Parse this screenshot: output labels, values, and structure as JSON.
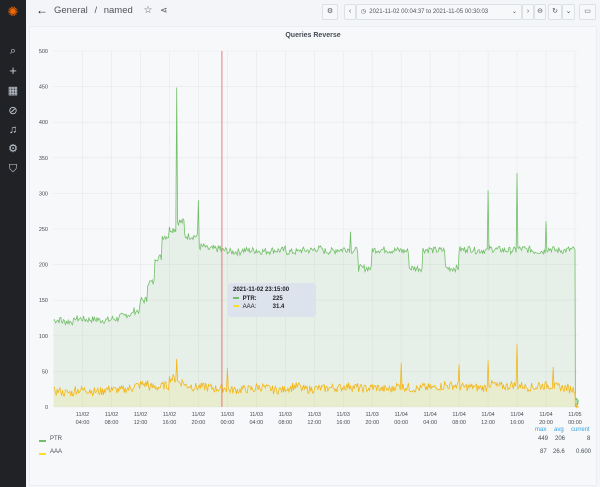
{
  "sidebar": {
    "items": [
      "grafana-logo",
      "search-icon",
      "plus-icon",
      "dashboards-icon",
      "explore-icon",
      "alerting-icon",
      "settings-icon",
      "shield-icon"
    ]
  },
  "header": {
    "breadcrumb_folder": "General",
    "breadcrumb_sep": "/",
    "dashboard": "named",
    "time_range": "2021-11-02 00:04:37 to 2021-11-05 00:30:03"
  },
  "panel": {
    "title": "Queries Reverse"
  },
  "tooltip": {
    "time": "2021-11-02 23:15:00",
    "rows": [
      {
        "name": "PTR:",
        "value": "225"
      },
      {
        "name": "AAA:",
        "value": "31.4"
      }
    ]
  },
  "legend": {
    "headers": [
      "max",
      "avg",
      "current"
    ],
    "rows": [
      {
        "name": "PTR",
        "max": "449",
        "avg": "206",
        "current": "8"
      },
      {
        "name": "AAA",
        "max": "87",
        "avg": "26.6",
        "current": "0.600"
      }
    ]
  },
  "chart_data": {
    "type": "line",
    "title": "Queries Reverse",
    "ylim": [
      0,
      500
    ],
    "yticks": [
      "0",
      "50",
      "100",
      "150",
      "200",
      "250",
      "300",
      "350",
      "400",
      "450",
      "500"
    ],
    "xticks": [
      [
        "11/02",
        "04:00"
      ],
      [
        "11/02",
        "08:00"
      ],
      [
        "11/02",
        "12:00"
      ],
      [
        "11/02",
        "16:00"
      ],
      [
        "11/02",
        "20:00"
      ],
      [
        "11/03",
        "00:00"
      ],
      [
        "11/03",
        "04:00"
      ],
      [
        "11/03",
        "08:00"
      ],
      [
        "11/03",
        "12:00"
      ],
      [
        "11/03",
        "16:00"
      ],
      [
        "11/03",
        "20:00"
      ],
      [
        "11/04",
        "00:00"
      ],
      [
        "11/04",
        "04:00"
      ],
      [
        "11/04",
        "08:00"
      ],
      [
        "11/04",
        "12:00"
      ],
      [
        "11/04",
        "16:00"
      ],
      [
        "11/04",
        "20:00"
      ],
      [
        "11/05",
        "00:00"
      ]
    ],
    "x_hours_from_2021-11-02_00:00": [
      0,
      1,
      2,
      3,
      4,
      5,
      6,
      7,
      8,
      9,
      10,
      11,
      12,
      13,
      14,
      15,
      16,
      17,
      18,
      19,
      20,
      21,
      22,
      23,
      24,
      25,
      26,
      27,
      28,
      29,
      30,
      31,
      32,
      33,
      34,
      35,
      36,
      37,
      38,
      39,
      40,
      41,
      42,
      43,
      44,
      45,
      46,
      47,
      48,
      49,
      50,
      51,
      52,
      53,
      54,
      55,
      56,
      57,
      58,
      59,
      60,
      61,
      62,
      63,
      64,
      65,
      66,
      67,
      68,
      69,
      70,
      71,
      72,
      72.5
    ],
    "series": [
      {
        "name": "PTR",
        "color": "#73bf69",
        "values": [
          122,
          125,
          120,
          126,
          124,
          123,
          125,
          122,
          124,
          127,
          130,
          135,
          150,
          175,
          210,
          240,
          250,
          449,
          260,
          240,
          290,
          225,
          222,
          225,
          220,
          218,
          222,
          220,
          221,
          219,
          222,
          220,
          223,
          218,
          221,
          220,
          222,
          224,
          219,
          221,
          222,
          245,
          220,
          195,
          222,
          221,
          223,
          220,
          222,
          219,
          195,
          221,
          223,
          220,
          222,
          195,
          221,
          224,
          222,
          220,
          300,
          222,
          221,
          220,
          330,
          222,
          221,
          219,
          265,
          222,
          220,
          221,
          222,
          8
        ]
      },
      {
        "name": "AAA",
        "color": "#fade2a",
        "values": [
          22,
          25,
          20,
          27,
          24,
          26,
          22,
          25,
          28,
          24,
          26,
          30,
          32,
          35,
          28,
          30,
          40,
          70,
          35,
          30,
          28,
          31,
          27,
          26,
          55,
          24,
          27,
          25,
          28,
          30,
          26,
          24,
          27,
          29,
          31,
          25,
          28,
          26,
          30,
          27,
          29,
          32,
          28,
          26,
          30,
          27,
          25,
          29,
          65,
          28,
          26,
          31,
          27,
          29,
          33,
          30,
          60,
          28,
          30,
          27,
          70,
          32,
          29,
          31,
          87,
          30,
          28,
          33,
          30,
          60,
          28,
          27,
          25,
          0.6
        ]
      }
    ]
  }
}
